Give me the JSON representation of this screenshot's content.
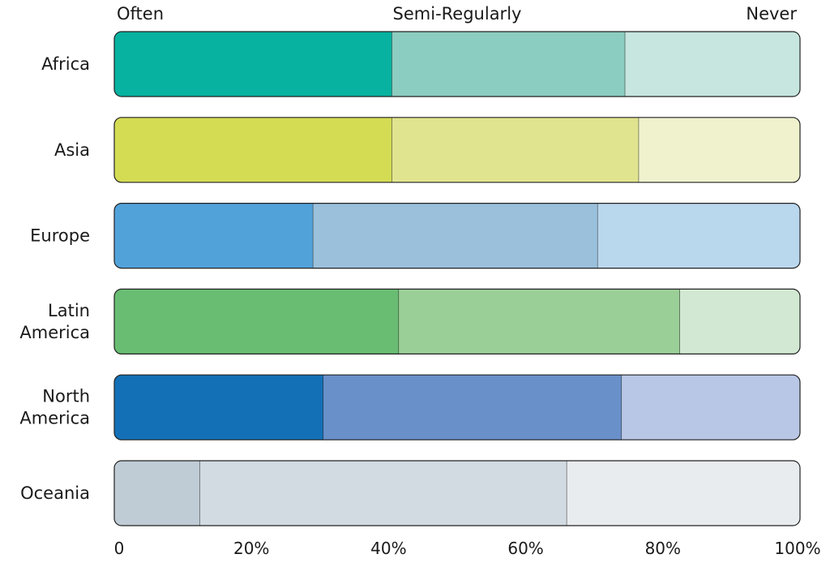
{
  "chart_data": {
    "type": "bar",
    "orientation": "horizontal",
    "stacked": true,
    "title": "",
    "xlabel": "",
    "ylabel": "",
    "xlim": [
      0,
      100
    ],
    "xticks": [
      "0",
      "20%",
      "40%",
      "60%",
      "80%",
      "100%"
    ],
    "legend_labels": [
      "Often",
      "Semi-Regularly",
      "Never"
    ],
    "legend_placement": "top",
    "grid": false,
    "categories": [
      {
        "label": [
          "Africa"
        ],
        "values": [
          40.5,
          34.0,
          25.5
        ],
        "colors": [
          "#07b2a0",
          "#8bcdc0",
          "#c6e6df"
        ]
      },
      {
        "label": [
          "Asia"
        ],
        "values": [
          40.5,
          36.0,
          23.5
        ],
        "colors": [
          "#d4dc54",
          "#e1e48e",
          "#eff2cd"
        ]
      },
      {
        "label": [
          "Europe"
        ],
        "values": [
          29.0,
          41.5,
          29.5
        ],
        "colors": [
          "#52a2da",
          "#9bc0dc",
          "#b9d7ed"
        ]
      },
      {
        "label": [
          "Latin",
          "America"
        ],
        "values": [
          41.5,
          41.0,
          17.5
        ],
        "colors": [
          "#68bd72",
          "#9bcf98",
          "#d2e8d2"
        ]
      },
      {
        "label": [
          "North",
          "America"
        ],
        "values": [
          30.5,
          43.5,
          26.0
        ],
        "colors": [
          "#1470b6",
          "#6a90c9",
          "#b8c7e5"
        ]
      },
      {
        "label": [
          "Oceania"
        ],
        "values": [
          12.5,
          53.5,
          34.0
        ],
        "colors": [
          "#bfccd6",
          "#d3dbe2",
          "#e9ecef"
        ]
      }
    ]
  }
}
